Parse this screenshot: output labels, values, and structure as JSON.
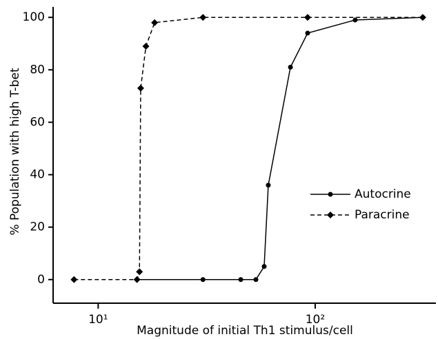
{
  "chart_data": {
    "type": "line",
    "x_label": "Magnitude of initial Th1 stimulus/cell",
    "y_label": "% Population with high T-bet",
    "x_scale": "log",
    "xlim": [
      6.2,
      360
    ],
    "xticks": [
      {
        "value": 10,
        "label": "10¹"
      },
      {
        "value": 100,
        "label": "10²"
      }
    ],
    "ylim": [
      -9,
      104
    ],
    "yticks": [
      0,
      20,
      40,
      60,
      80,
      100
    ],
    "legend": "right",
    "series": [
      {
        "name": "Autocrine",
        "color": "#000000",
        "line_style": "solid",
        "marker": "circle",
        "x": [
          15.1,
          30.4,
          45.4,
          53.3,
          58.2,
          60.8,
          76.9,
          92.3,
          152.8,
          313
        ],
        "values": [
          0,
          0,
          0,
          0,
          5,
          36,
          81,
          94,
          99,
          100
        ]
      },
      {
        "name": "Paracrine",
        "color": "#000000",
        "line_style": "dashed",
        "marker": "diamond",
        "x": [
          7.74,
          15.1,
          15.5,
          15.7,
          16.6,
          18.2,
          30.4,
          92.3,
          313
        ],
        "values": [
          0,
          0,
          3,
          73,
          89,
          98,
          100,
          100,
          100
        ]
      }
    ]
  }
}
